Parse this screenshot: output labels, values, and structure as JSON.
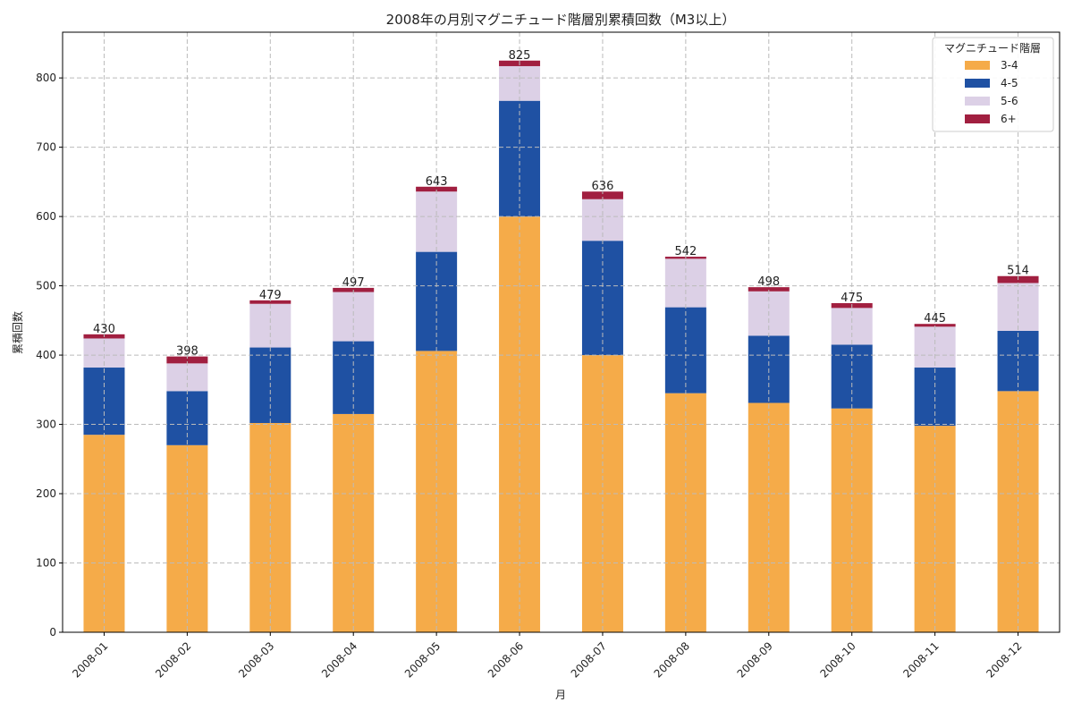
{
  "chart_data": {
    "type": "bar",
    "stacked": true,
    "title": "2008年の月別マグニチュード階層別累積回数（M3以上）",
    "xlabel": "月",
    "ylabel": "累積回数",
    "ylim": [
      0,
      866
    ],
    "yticks": [
      0,
      100,
      200,
      300,
      400,
      500,
      600,
      700,
      800
    ],
    "grid": true,
    "legend_title": "マグニチュード階層",
    "legend_position": "top-right",
    "categories": [
      "2008-01",
      "2008-02",
      "2008-03",
      "2008-04",
      "2008-05",
      "2008-06",
      "2008-07",
      "2008-08",
      "2008-09",
      "2008-10",
      "2008-11",
      "2008-12"
    ],
    "series": [
      {
        "name": "3-4",
        "color": "#F5AB49",
        "values": [
          285,
          270,
          302,
          315,
          406,
          600,
          400,
          345,
          331,
          323,
          298,
          348
        ]
      },
      {
        "name": "4-5",
        "color": "#1F51A3",
        "values": [
          97,
          78,
          109,
          105,
          143,
          167,
          165,
          124,
          97,
          92,
          84,
          87
        ]
      },
      {
        "name": "5-6",
        "color": "#DCD0E6",
        "values": [
          42,
          40,
          63,
          71,
          87,
          50,
          60,
          70,
          64,
          53,
          59,
          69
        ]
      },
      {
        "name": "6+",
        "color": "#A11F40",
        "values": [
          6,
          10,
          5,
          6,
          7,
          8,
          11,
          3,
          6,
          7,
          4,
          10
        ]
      }
    ],
    "totals": [
      430,
      398,
      479,
      497,
      643,
      825,
      636,
      542,
      498,
      475,
      445,
      514
    ]
  }
}
